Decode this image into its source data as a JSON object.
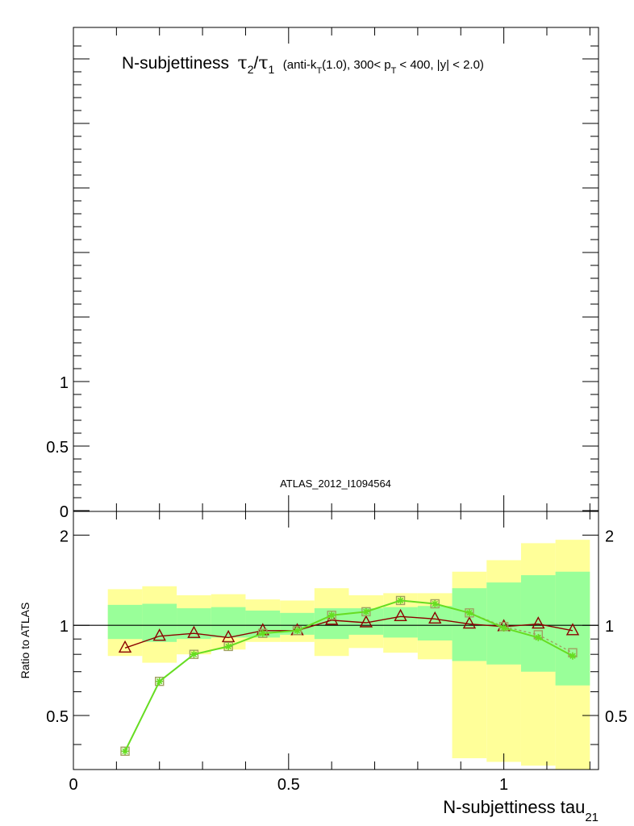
{
  "chart_data": [
    {
      "type": "line",
      "panel": "main",
      "title": {
        "main": "N-subjettiness",
        "tau_num": "τ",
        "sub_num": "2",
        "slash": "/",
        "tau_den": "τ",
        "sub_den": "1",
        "cuts_pre": "(anti-k",
        "cuts_sub_t": "T",
        "cuts_mid": "(1.0), 300< p",
        "cuts_sub_t2": "T",
        "cuts_post": "< 400, |y| < 2.0)"
      },
      "annotation": "ATLAS_2012_I1094564",
      "ytick_labels": [
        "0",
        "0.5",
        "1"
      ],
      "yticks": [
        0,
        0.5,
        1
      ]
    },
    {
      "type": "line",
      "panel": "ratio",
      "ylabel": "Ratio to ATLAS",
      "xlabel_main": "N-subjettiness tau",
      "xlabel_sub": "21",
      "xlim": [
        0,
        1.22
      ],
      "ylim": [
        0.33,
        2.4
      ],
      "log_y": true,
      "xtick_labels": [
        "0",
        "0.5",
        "1"
      ],
      "xticks": [
        0,
        0.5,
        1
      ],
      "ytick_labels": [
        "0.5",
        "1",
        "2"
      ],
      "yticks": [
        0.5,
        1,
        2
      ],
      "reference_line": 1,
      "bins": [
        [
          0.08,
          0.16
        ],
        [
          0.16,
          0.24
        ],
        [
          0.24,
          0.32
        ],
        [
          0.32,
          0.4
        ],
        [
          0.4,
          0.48
        ],
        [
          0.48,
          0.56
        ],
        [
          0.56,
          0.64
        ],
        [
          0.64,
          0.72
        ],
        [
          0.72,
          0.8
        ],
        [
          0.8,
          0.88
        ],
        [
          0.88,
          0.96
        ],
        [
          0.96,
          1.04
        ],
        [
          1.04,
          1.12
        ],
        [
          1.12,
          1.2
        ]
      ],
      "band_total": {
        "color": "#ffff99",
        "lo": [
          0.79,
          0.75,
          0.8,
          0.83,
          0.88,
          0.88,
          0.79,
          0.84,
          0.81,
          0.77,
          0.36,
          0.35,
          0.34,
          0.32
        ],
        "hi": [
          1.32,
          1.35,
          1.26,
          1.27,
          1.22,
          1.21,
          1.33,
          1.26,
          1.28,
          1.28,
          1.51,
          1.65,
          1.88,
          1.93
        ]
      },
      "band_stat": {
        "color": "#99ff99",
        "lo": [
          0.9,
          0.88,
          0.9,
          0.91,
          0.91,
          0.93,
          0.9,
          0.93,
          0.91,
          0.89,
          0.76,
          0.74,
          0.7,
          0.63
        ],
        "hi": [
          1.17,
          1.18,
          1.14,
          1.15,
          1.12,
          1.1,
          1.14,
          1.14,
          1.15,
          1.16,
          1.33,
          1.39,
          1.47,
          1.51
        ]
      },
      "x": [
        0.12,
        0.2,
        0.28,
        0.36,
        0.44,
        0.52,
        0.6,
        0.68,
        0.76,
        0.84,
        0.92,
        1.0,
        1.08,
        1.16
      ],
      "series": [
        {
          "color": "#8b0000",
          "marker": "triangle",
          "values": [
            0.84,
            0.92,
            0.94,
            0.91,
            0.96,
            0.96,
            1.04,
            1.02,
            1.07,
            1.05,
            1.01,
            0.99,
            1.01,
            0.96
          ]
        },
        {
          "color": "#a0a060",
          "marker": "square",
          "dashed": true,
          "values": [
            0.38,
            0.65,
            0.8,
            0.85,
            0.94,
            0.96,
            1.08,
            1.11,
            1.21,
            1.18,
            1.1,
            0.99,
            0.93,
            0.81
          ]
        },
        {
          "color": "#66dd22",
          "marker": "star",
          "values": [
            0.38,
            0.65,
            0.8,
            0.85,
            0.94,
            0.96,
            1.08,
            1.11,
            1.21,
            1.18,
            1.1,
            0.98,
            0.91,
            0.79
          ]
        }
      ]
    }
  ]
}
